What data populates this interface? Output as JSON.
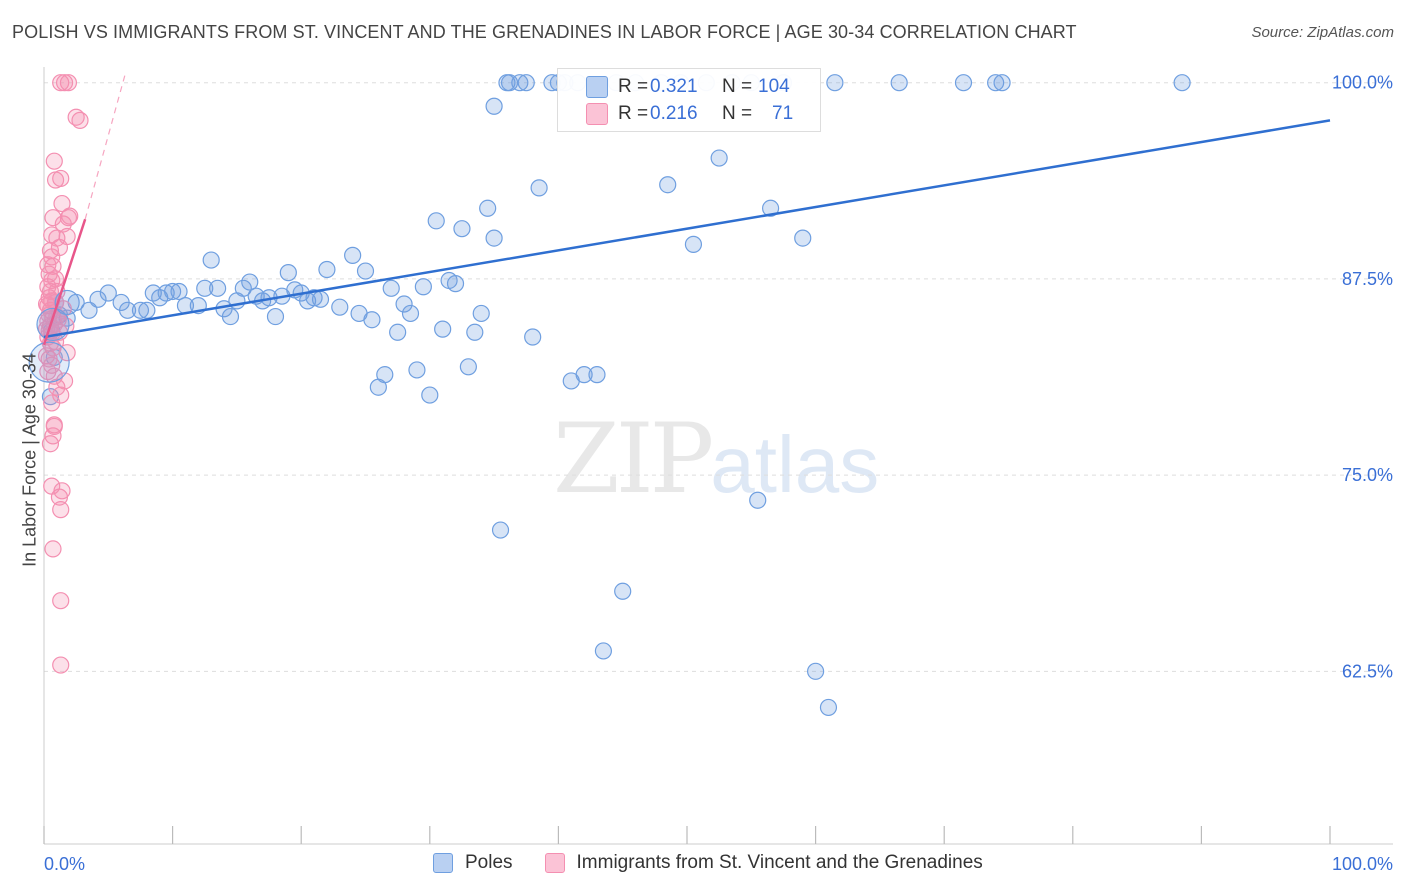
{
  "title": "POLISH VS IMMIGRANTS FROM ST. VINCENT AND THE GRENADINES IN LABOR FORCE | AGE 30-34 CORRELATION CHART",
  "source": "Source: ZipAtlas.com",
  "watermark": {
    "zip": "ZIP",
    "atlas": "atlas"
  },
  "colors": {
    "blue": "#6f9fe0",
    "blue_line": "#2f6fd0",
    "pink": "#f48fb1",
    "pink_line": "#e8568a",
    "grid": "#dddddd",
    "tick_label": "#3a6fd6"
  },
  "stats": {
    "poles": {
      "r_label": "R =",
      "r_value": "0.321",
      "n_label": "N =",
      "n_value": "104"
    },
    "immigrants": {
      "r_label": "R =",
      "r_value": "0.216",
      "n_label": "N =",
      "n_value": "71"
    }
  },
  "legend": {
    "poles": "Poles",
    "immigrants": "Immigrants from St. Vincent and the Grenadines"
  },
  "chart_data": {
    "type": "scatter",
    "title": "POLISH VS IMMIGRANTS FROM ST. VINCENT AND THE GRENADINES IN LABOR FORCE | AGE 30-34 CORRELATION CHART",
    "xlabel": "",
    "ylabel": "In Labor Force | Age 30-34",
    "xlim": [
      0,
      100
    ],
    "ylim": [
      51.5,
      101
    ],
    "x_tick_labels": [
      "0.0%",
      "100.0%"
    ],
    "y_ticks": [
      62.5,
      75.0,
      87.5,
      100.0
    ],
    "y_tick_labels": [
      "62.5%",
      "75.0%",
      "87.5%",
      "100.0%"
    ],
    "grid": true,
    "legend_position": "bottom",
    "series": [
      {
        "name": "Poles",
        "trend": {
          "x": [
            0,
            100
          ],
          "y": [
            83.8,
            97.6
          ]
        },
        "points": [
          {
            "x": 0.6,
            "y": 84.2
          },
          {
            "x": 0.9,
            "y": 86.0
          },
          {
            "x": 1.2,
            "y": 85.2
          },
          {
            "x": 1.8,
            "y": 85.0
          },
          {
            "x": 2.5,
            "y": 86.0
          },
          {
            "x": 3.5,
            "y": 85.5
          },
          {
            "x": 4.2,
            "y": 86.2
          },
          {
            "x": 5.0,
            "y": 86.6
          },
          {
            "x": 6.0,
            "y": 86.0
          },
          {
            "x": 6.5,
            "y": 85.5
          },
          {
            "x": 7.5,
            "y": 85.5
          },
          {
            "x": 8.0,
            "y": 85.5
          },
          {
            "x": 8.5,
            "y": 86.6
          },
          {
            "x": 9.0,
            "y": 86.3
          },
          {
            "x": 9.5,
            "y": 86.6
          },
          {
            "x": 10.0,
            "y": 86.7
          },
          {
            "x": 10.5,
            "y": 86.7
          },
          {
            "x": 11.0,
            "y": 85.8
          },
          {
            "x": 12.0,
            "y": 85.8
          },
          {
            "x": 12.5,
            "y": 86.9
          },
          {
            "x": 13.0,
            "y": 88.7
          },
          {
            "x": 13.5,
            "y": 86.9
          },
          {
            "x": 14.0,
            "y": 85.6
          },
          {
            "x": 14.5,
            "y": 85.1
          },
          {
            "x": 15.0,
            "y": 86.1
          },
          {
            "x": 15.5,
            "y": 86.9
          },
          {
            "x": 16.0,
            "y": 87.3
          },
          {
            "x": 16.5,
            "y": 86.4
          },
          {
            "x": 17.0,
            "y": 86.1
          },
          {
            "x": 17.5,
            "y": 86.3
          },
          {
            "x": 18.0,
            "y": 85.1
          },
          {
            "x": 18.5,
            "y": 86.4
          },
          {
            "x": 19.0,
            "y": 87.9
          },
          {
            "x": 19.5,
            "y": 86.8
          },
          {
            "x": 20.0,
            "y": 86.6
          },
          {
            "x": 20.5,
            "y": 86.1
          },
          {
            "x": 21.0,
            "y": 86.3
          },
          {
            "x": 21.5,
            "y": 86.2
          },
          {
            "x": 22.0,
            "y": 88.1
          },
          {
            "x": 23.0,
            "y": 85.7
          },
          {
            "x": 24.0,
            "y": 89.0
          },
          {
            "x": 24.5,
            "y": 85.3
          },
          {
            "x": 25.0,
            "y": 88.0
          },
          {
            "x": 25.5,
            "y": 84.9
          },
          {
            "x": 26.0,
            "y": 80.6
          },
          {
            "x": 26.5,
            "y": 81.4
          },
          {
            "x": 27.0,
            "y": 86.9
          },
          {
            "x": 27.5,
            "y": 84.1
          },
          {
            "x": 28.0,
            "y": 85.9
          },
          {
            "x": 28.5,
            "y": 85.3
          },
          {
            "x": 29.0,
            "y": 81.7
          },
          {
            "x": 29.5,
            "y": 87.0
          },
          {
            "x": 30.0,
            "y": 80.1
          },
          {
            "x": 30.5,
            "y": 91.2
          },
          {
            "x": 31.0,
            "y": 84.3
          },
          {
            "x": 31.5,
            "y": 87.4
          },
          {
            "x": 32.0,
            "y": 87.2
          },
          {
            "x": 32.5,
            "y": 90.7
          },
          {
            "x": 33.0,
            "y": 81.9
          },
          {
            "x": 33.5,
            "y": 84.1
          },
          {
            "x": 34.0,
            "y": 85.3
          },
          {
            "x": 34.5,
            "y": 92.0
          },
          {
            "x": 35.0,
            "y": 90.1
          },
          {
            "x": 35.5,
            "y": 71.5
          },
          {
            "x": 35.0,
            "y": 98.5
          },
          {
            "x": 36.0,
            "y": 100.0
          },
          {
            "x": 36.2,
            "y": 100.0
          },
          {
            "x": 37.0,
            "y": 100.0
          },
          {
            "x": 37.5,
            "y": 100.0
          },
          {
            "x": 38.0,
            "y": 83.8
          },
          {
            "x": 38.5,
            "y": 93.3
          },
          {
            "x": 39.5,
            "y": 100.0
          },
          {
            "x": 40.0,
            "y": 100.0
          },
          {
            "x": 40.5,
            "y": 100.0
          },
          {
            "x": 41.0,
            "y": 81.0
          },
          {
            "x": 41.5,
            "y": 100.0
          },
          {
            "x": 42.0,
            "y": 81.4
          },
          {
            "x": 43.0,
            "y": 81.4
          },
          {
            "x": 43.5,
            "y": 63.8
          },
          {
            "x": 44.5,
            "y": 100.0
          },
          {
            "x": 45.0,
            "y": 67.6
          },
          {
            "x": 46.0,
            "y": 100.0
          },
          {
            "x": 48.0,
            "y": 100.0
          },
          {
            "x": 48.5,
            "y": 93.5
          },
          {
            "x": 49.5,
            "y": 100.0
          },
          {
            "x": 50.5,
            "y": 89.7
          },
          {
            "x": 51.5,
            "y": 100.0
          },
          {
            "x": 52.5,
            "y": 95.2
          },
          {
            "x": 53.5,
            "y": 100.0
          },
          {
            "x": 55.5,
            "y": 73.4
          },
          {
            "x": 55.0,
            "y": 100.0
          },
          {
            "x": 56.5,
            "y": 92.0
          },
          {
            "x": 57.5,
            "y": 100.0
          },
          {
            "x": 59.0,
            "y": 90.1
          },
          {
            "x": 60.0,
            "y": 62.5
          },
          {
            "x": 61.0,
            "y": 60.2
          },
          {
            "x": 61.5,
            "y": 100.0
          },
          {
            "x": 66.5,
            "y": 100.0
          },
          {
            "x": 71.5,
            "y": 100.0
          },
          {
            "x": 74.0,
            "y": 100.0
          },
          {
            "x": 74.5,
            "y": 100.0
          },
          {
            "x": 88.5,
            "y": 100.0
          },
          {
            "x": 0.8,
            "y": 82.5
          },
          {
            "x": 0.5,
            "y": 80.0
          }
        ]
      },
      {
        "name": "Immigrants from St. Vincent and the Grenadines",
        "trend": {
          "x": [
            0,
            3.2
          ],
          "y": [
            83.3,
            91.3
          ]
        },
        "points": [
          {
            "x": 1.3,
            "y": 100.0
          },
          {
            "x": 1.6,
            "y": 100.0
          },
          {
            "x": 1.9,
            "y": 100.0
          },
          {
            "x": 2.5,
            "y": 97.8
          },
          {
            "x": 2.8,
            "y": 97.6
          },
          {
            "x": 0.8,
            "y": 95.0
          },
          {
            "x": 0.9,
            "y": 93.8
          },
          {
            "x": 1.3,
            "y": 93.9
          },
          {
            "x": 1.4,
            "y": 92.3
          },
          {
            "x": 0.7,
            "y": 91.4
          },
          {
            "x": 1.5,
            "y": 91.0
          },
          {
            "x": 1.9,
            "y": 91.4
          },
          {
            "x": 0.6,
            "y": 90.3
          },
          {
            "x": 1.0,
            "y": 90.1
          },
          {
            "x": 1.8,
            "y": 90.2
          },
          {
            "x": 0.5,
            "y": 89.3
          },
          {
            "x": 1.2,
            "y": 89.5
          },
          {
            "x": 0.6,
            "y": 88.9
          },
          {
            "x": 0.7,
            "y": 88.3
          },
          {
            "x": 0.4,
            "y": 87.8
          },
          {
            "x": 0.6,
            "y": 87.4
          },
          {
            "x": 0.3,
            "y": 87.0
          },
          {
            "x": 0.5,
            "y": 86.7
          },
          {
            "x": 0.4,
            "y": 86.3
          },
          {
            "x": 0.6,
            "y": 86.1
          },
          {
            "x": 0.3,
            "y": 85.8
          },
          {
            "x": 0.5,
            "y": 85.5
          },
          {
            "x": 0.4,
            "y": 85.2
          },
          {
            "x": 0.7,
            "y": 85.0
          },
          {
            "x": 1.0,
            "y": 85.1
          },
          {
            "x": 0.3,
            "y": 84.8
          },
          {
            "x": 0.5,
            "y": 84.5
          },
          {
            "x": 0.8,
            "y": 84.6
          },
          {
            "x": 0.4,
            "y": 84.2
          },
          {
            "x": 0.6,
            "y": 84.0
          },
          {
            "x": 0.3,
            "y": 83.8
          },
          {
            "x": 1.2,
            "y": 84.1
          },
          {
            "x": 1.7,
            "y": 84.5
          },
          {
            "x": 0.5,
            "y": 83.4
          },
          {
            "x": 0.7,
            "y": 83.1
          },
          {
            "x": 1.8,
            "y": 82.8
          },
          {
            "x": 0.4,
            "y": 82.4
          },
          {
            "x": 0.6,
            "y": 82.0
          },
          {
            "x": 0.3,
            "y": 81.6
          },
          {
            "x": 0.8,
            "y": 81.3
          },
          {
            "x": 1.6,
            "y": 81.0
          },
          {
            "x": 1.0,
            "y": 80.6
          },
          {
            "x": 1.3,
            "y": 80.1
          },
          {
            "x": 0.6,
            "y": 79.6
          },
          {
            "x": 0.8,
            "y": 78.2
          },
          {
            "x": 0.7,
            "y": 77.5
          },
          {
            "x": 0.5,
            "y": 77.0
          },
          {
            "x": 0.6,
            "y": 74.3
          },
          {
            "x": 1.4,
            "y": 74.0
          },
          {
            "x": 1.2,
            "y": 73.6
          },
          {
            "x": 1.3,
            "y": 72.8
          },
          {
            "x": 0.7,
            "y": 70.3
          },
          {
            "x": 1.3,
            "y": 67.0
          },
          {
            "x": 1.3,
            "y": 62.9
          },
          {
            "x": 0.9,
            "y": 86.0
          },
          {
            "x": 1.1,
            "y": 84.9
          },
          {
            "x": 0.9,
            "y": 83.5
          },
          {
            "x": 0.2,
            "y": 85.9
          },
          {
            "x": 0.2,
            "y": 84.3
          },
          {
            "x": 0.2,
            "y": 82.6
          },
          {
            "x": 0.3,
            "y": 88.4
          },
          {
            "x": 0.9,
            "y": 87.5
          },
          {
            "x": 0.8,
            "y": 78.1
          },
          {
            "x": 1.0,
            "y": 86.7
          },
          {
            "x": 1.5,
            "y": 85.6
          },
          {
            "x": 2.0,
            "y": 91.5
          }
        ]
      }
    ]
  }
}
